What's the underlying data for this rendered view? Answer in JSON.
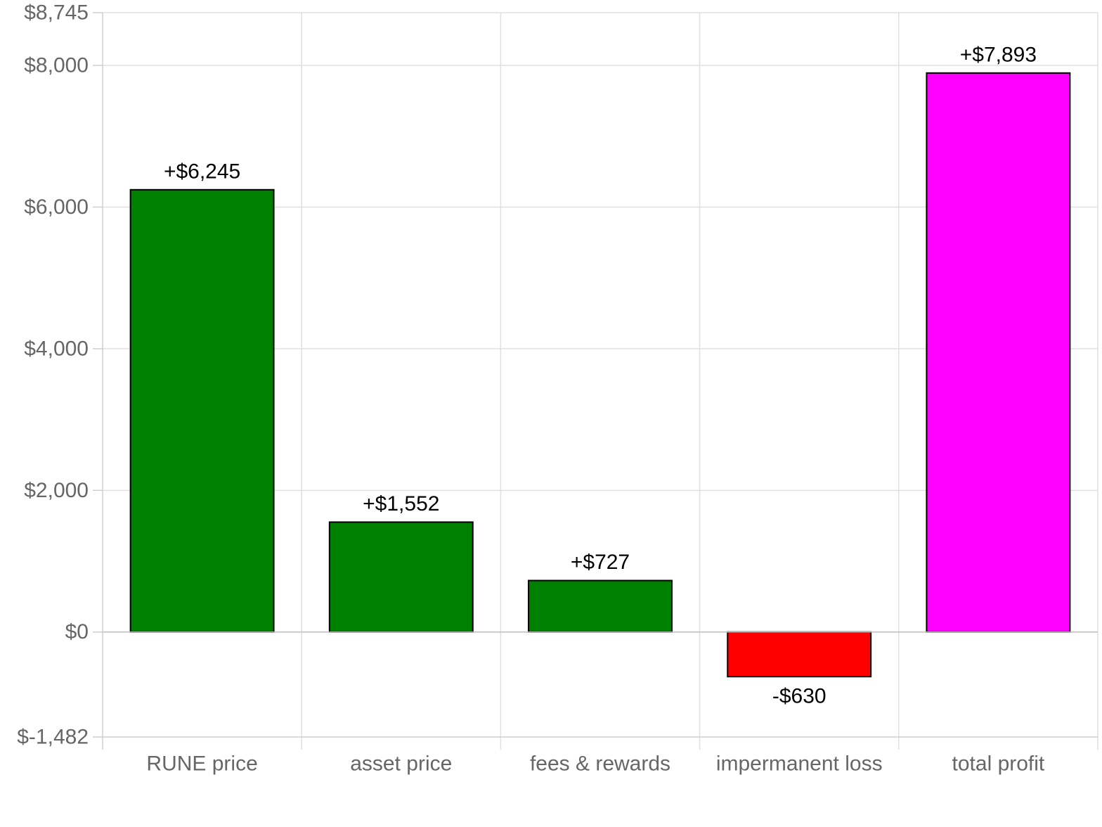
{
  "chart_data": {
    "type": "bar",
    "categories": [
      "RUNE price",
      "asset price",
      "fees & rewards",
      "impermanent loss",
      "total profit"
    ],
    "values": [
      6245,
      1552,
      727,
      -630,
      7893
    ],
    "data_labels": [
      "+$6,245",
      "+$1,552",
      "+$727",
      "-$630",
      "+$7,893"
    ],
    "bar_colors": [
      "#008000",
      "#008000",
      "#008000",
      "#ff0000",
      "#ff00ff"
    ],
    "ylim": [
      -1482,
      8745
    ],
    "yticks": [
      8745,
      8000,
      6000,
      4000,
      2000,
      0,
      -1482
    ],
    "ytick_labels": [
      "$8,745",
      "$8,000",
      "$6,000",
      "$4,000",
      "$2,000",
      "$0",
      "$-1,482"
    ],
    "grid": true,
    "title": "",
    "xlabel": "",
    "ylabel": ""
  }
}
